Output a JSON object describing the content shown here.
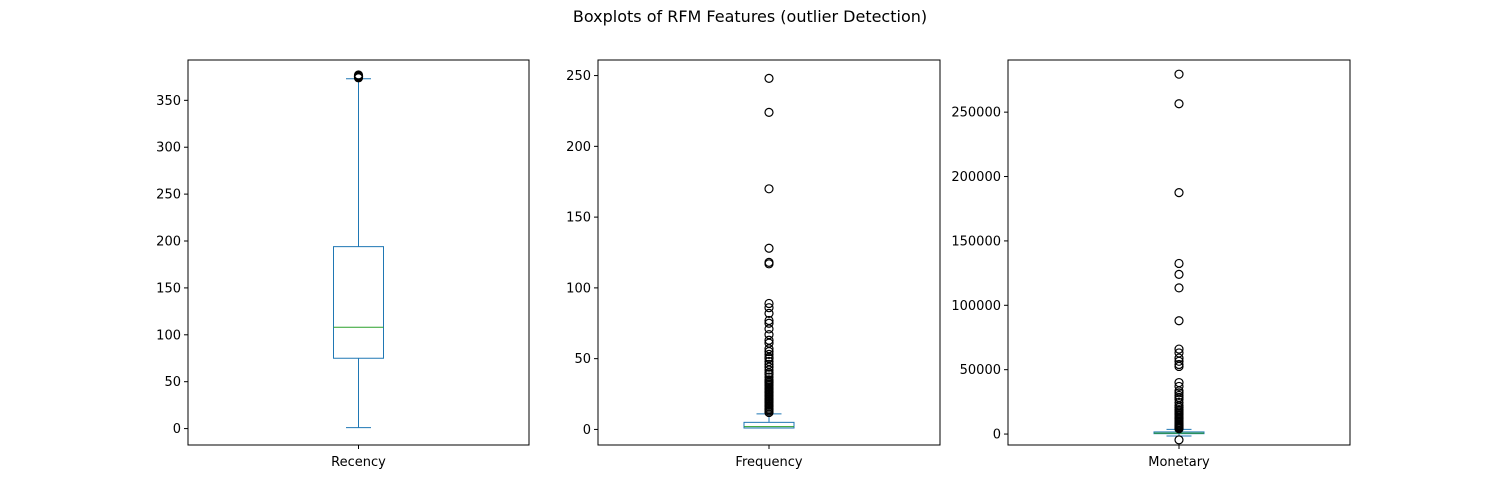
{
  "figure_title": "Boxplots of RFM Features (outlier Detection)",
  "colors": {
    "box": "#1f77b4",
    "median": "#2ca02c",
    "flier": "#000000",
    "axes": "#000000"
  },
  "chart_data": [
    {
      "type": "box",
      "title": "",
      "category": "Recency",
      "ylim": [
        -17.5,
        393
      ],
      "yticks": [
        0,
        50,
        100,
        150,
        200,
        250,
        300,
        350
      ],
      "ytick_labels": [
        "0",
        "50",
        "100",
        "150",
        "200",
        "250",
        "300",
        "350"
      ],
      "grid": false,
      "stats": {
        "whislo": 1,
        "q1": 75,
        "median": 108,
        "q3": 194,
        "whishi": 373
      },
      "fliers": [
        374,
        375,
        375,
        376,
        376,
        377
      ]
    },
    {
      "type": "box",
      "title": "",
      "category": "Frequency",
      "ylim": [
        -11,
        261
      ],
      "yticks": [
        0,
        50,
        100,
        150,
        200,
        250
      ],
      "ytick_labels": [
        "0",
        "50",
        "100",
        "150",
        "200",
        "250"
      ],
      "grid": false,
      "stats": {
        "whislo": 1,
        "q1": 1,
        "median": 2,
        "q3": 5,
        "whishi": 11
      },
      "fliers": [
        248,
        224,
        170,
        128,
        118,
        117,
        89,
        86,
        82,
        77,
        75,
        71,
        67,
        63,
        61,
        57,
        55,
        53,
        51,
        50,
        48,
        46,
        44,
        42,
        40,
        39,
        37,
        35,
        34,
        33,
        32,
        31,
        30,
        29,
        28,
        27,
        26,
        25,
        24,
        23,
        22,
        21,
        20,
        19,
        18,
        17,
        16,
        15,
        14,
        13,
        12
      ]
    },
    {
      "type": "box",
      "title": "",
      "category": "Monetary",
      "ylim": [
        -8500,
        290500
      ],
      "yticks": [
        0,
        50000,
        100000,
        150000,
        200000,
        250000
      ],
      "ytick_labels": [
        "0",
        "50000",
        "100000",
        "150000",
        "200000",
        "250000"
      ],
      "grid": false,
      "stats": {
        "whislo": -1500,
        "q1": 300,
        "median": 700,
        "q3": 1650,
        "whishi": 3600
      },
      "fliers": [
        279500,
        256500,
        187500,
        132500,
        124000,
        113500,
        88000,
        66000,
        63000,
        59000,
        56500,
        54000,
        52500,
        40000,
        37000,
        33500,
        32000,
        30000,
        28500,
        27000,
        24500,
        22000,
        20500,
        19000,
        18000,
        17000,
        16000,
        15000,
        14000,
        13000,
        12000,
        11000,
        10000,
        9000,
        8000,
        7200,
        6500,
        5800,
        5200,
        4600,
        4100,
        -4500
      ]
    }
  ]
}
